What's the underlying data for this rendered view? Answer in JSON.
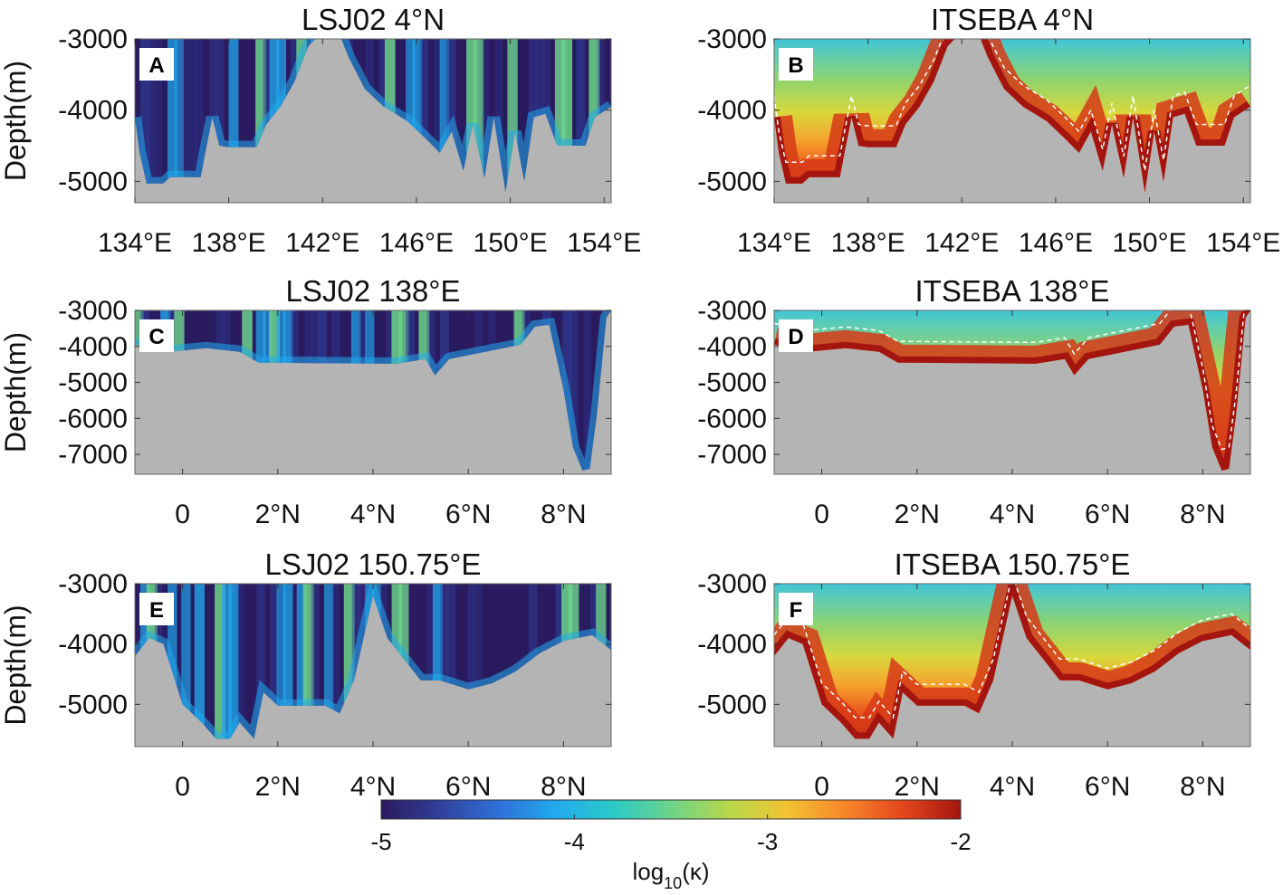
{
  "colors": {
    "seafloor": "#b4b4b4",
    "contour": "#ffffff",
    "colormap": [
      "#2b1a5e",
      "#303f9a",
      "#2f6fd8",
      "#21a9ee",
      "#2bc9c8",
      "#6cd48a",
      "#b8d84a",
      "#f2c232",
      "#f8862a",
      "#e5461d",
      "#a3150e"
    ]
  },
  "chart_data": [
    {
      "panel": "A",
      "type": "heatmap",
      "title": "LSJ02   4°N",
      "model": "LSJ02",
      "ylabel": "Depth(m)",
      "ylim": [
        -5300,
        -3000
      ],
      "yticks": [
        -3000,
        -4000,
        -5000
      ],
      "ytick_labels": [
        "-3000",
        "-4000",
        "-5000"
      ],
      "xlim": [
        134,
        154.3
      ],
      "xticks": [
        134,
        138,
        142,
        146,
        150,
        154
      ],
      "xtick_labels": [
        "134°E",
        "138°E",
        "142°E",
        "146°E",
        "150°E",
        "154°E"
      ]
    },
    {
      "panel": "B",
      "type": "heatmap",
      "title": "ITSEBA   4°N",
      "model": "ITSEBA",
      "ylabel": "",
      "ylim": [
        -5300,
        -3000
      ],
      "yticks": [
        -3000,
        -4000,
        -5000
      ],
      "ytick_labels": [
        "-3000",
        "-4000",
        "-5000"
      ],
      "xlim": [
        134,
        154.3
      ],
      "xticks": [
        134,
        138,
        142,
        146,
        150,
        154
      ],
      "xtick_labels": [
        "134°E",
        "138°E",
        "142°E",
        "146°E",
        "150°E",
        "154°E"
      ]
    },
    {
      "panel": "C",
      "type": "heatmap",
      "title": "LSJ02   138°E",
      "model": "LSJ02",
      "ylabel": "Depth(m)",
      "ylim": [
        -7550,
        -3000
      ],
      "yticks": [
        -3000,
        -4000,
        -5000,
        -6000,
        -7000
      ],
      "ytick_labels": [
        "-3000",
        "-4000",
        "-5000",
        "-6000",
        "-7000"
      ],
      "xlim": [
        -1,
        9
      ],
      "xticks": [
        0,
        2,
        4,
        6,
        8
      ],
      "xtick_labels": [
        "0",
        "2°N",
        "4°N",
        "6°N",
        "8°N"
      ]
    },
    {
      "panel": "D",
      "type": "heatmap",
      "title": "ITSEBA   138°E",
      "model": "ITSEBA",
      "ylabel": "",
      "ylim": [
        -7550,
        -3000
      ],
      "yticks": [
        -3000,
        -4000,
        -5000,
        -6000,
        -7000
      ],
      "ytick_labels": [
        "-3000",
        "-4000",
        "-5000",
        "-6000",
        "-7000"
      ],
      "xlim": [
        -1,
        9
      ],
      "xticks": [
        0,
        2,
        4,
        6,
        8
      ],
      "xtick_labels": [
        "0",
        "2°N",
        "4°N",
        "6°N",
        "8°N"
      ]
    },
    {
      "panel": "E",
      "type": "heatmap",
      "title": "LSJ02   150.75°E",
      "model": "LSJ02",
      "ylabel": "Depth(m)",
      "ylim": [
        -5700,
        -3000
      ],
      "yticks": [
        -3000,
        -4000,
        -5000
      ],
      "ytick_labels": [
        "-3000",
        "-4000",
        "-5000"
      ],
      "xlim": [
        -1,
        9
      ],
      "xticks": [
        0,
        2,
        4,
        6,
        8
      ],
      "xtick_labels": [
        "0",
        "2°N",
        "4°N",
        "6°N",
        "8°N"
      ]
    },
    {
      "panel": "F",
      "type": "heatmap",
      "title": "ITSEBA   150.75°E",
      "model": "ITSEBA",
      "ylabel": "",
      "ylim": [
        -5700,
        -3000
      ],
      "yticks": [
        -3000,
        -4000,
        -5000
      ],
      "ytick_labels": [
        "-3000",
        "-4000",
        "-5000"
      ],
      "xlim": [
        -1,
        9
      ],
      "xticks": [
        0,
        2,
        4,
        6,
        8
      ],
      "xtick_labels": [
        "0",
        "2°N",
        "4°N",
        "6°N",
        "8°N"
      ]
    }
  ],
  "colorbar": {
    "label_main": "log",
    "label_sub": "10",
    "label_tail": "(κ)",
    "range": [
      -5,
      -2
    ],
    "ticks": [
      -5,
      -4,
      -3,
      -2
    ],
    "tick_labels": [
      "-5",
      "-4",
      "-3",
      "-2"
    ]
  }
}
